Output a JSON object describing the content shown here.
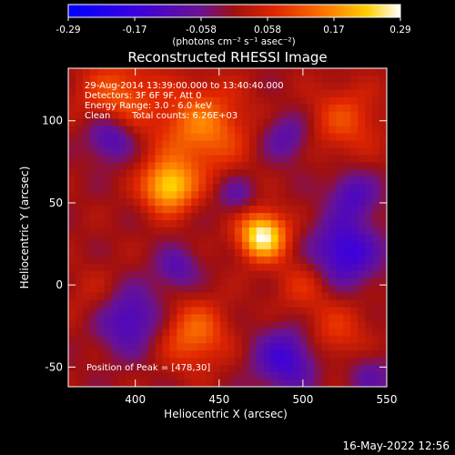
{
  "chart_data": {
    "type": "heatmap",
    "title": "Reconstructed RHESSI Image",
    "xlabel": "Heliocentric X (arcsec)",
    "ylabel": "Heliocentric Y (arcsec)",
    "xlim": [
      360,
      550
    ],
    "ylim": [
      -62,
      132
    ],
    "x_ticks": [
      400,
      450,
      500,
      550
    ],
    "y_ticks": [
      -50,
      0,
      50,
      100
    ],
    "grid": false,
    "colorbar": {
      "label": "(photons cm⁻² s⁻¹ asec⁻²)",
      "ticks": [
        "-0.29",
        "-0.17",
        "-0.058",
        "0.058",
        "0.17",
        "0.29"
      ],
      "range": [
        -0.29,
        0.29
      ]
    },
    "annotations": [
      "29-Aug-2014 13:39:00.000 to 13:40:40.000",
      "Detectors: 3F 6F 9F, Att 0",
      "Energy Range: 3.0 - 6.0 keV",
      "Clean",
      "Total counts: 6.26E+03"
    ],
    "peak_label": "Position of Peak = [478,30]",
    "sources": [
      {
        "x": 476,
        "y": 30,
        "value": 0.29,
        "sigma": 10
      },
      {
        "x": 420,
        "y": 60,
        "value": 0.24,
        "sigma": 11
      },
      {
        "x": 440,
        "y": 95,
        "value": 0.16,
        "sigma": 18
      },
      {
        "x": 390,
        "y": 115,
        "value": 0.12,
        "sigma": 16
      },
      {
        "x": 525,
        "y": 100,
        "value": 0.1,
        "sigma": 15
      },
      {
        "x": 435,
        "y": -30,
        "value": 0.14,
        "sigma": 14
      },
      {
        "x": 520,
        "y": -30,
        "value": 0.08,
        "sigma": 14
      },
      {
        "x": 380,
        "y": -10,
        "value": 0.06,
        "sigma": 14
      },
      {
        "x": 500,
        "y": 0,
        "value": 0.07,
        "sigma": 12
      }
    ],
    "negative_regions": [
      {
        "x": 395,
        "y": -20,
        "value": -0.16,
        "sigma": 14
      },
      {
        "x": 385,
        "y": 90,
        "value": -0.14,
        "sigma": 10
      },
      {
        "x": 525,
        "y": 20,
        "value": -0.18,
        "sigma": 14
      },
      {
        "x": 530,
        "y": 55,
        "value": -0.12,
        "sigma": 10
      },
      {
        "x": 490,
        "y": 90,
        "value": -0.1,
        "sigma": 10
      },
      {
        "x": 490,
        "y": -45,
        "value": -0.16,
        "sigma": 13
      },
      {
        "x": 460,
        "y": 55,
        "value": -0.08,
        "sigma": 8
      },
      {
        "x": 425,
        "y": 10,
        "value": -0.1,
        "sigma": 9
      },
      {
        "x": 540,
        "y": -55,
        "value": -0.08,
        "sigma": 10
      }
    ]
  },
  "footer": {
    "timestamp": "16-May-2022 12:56"
  }
}
